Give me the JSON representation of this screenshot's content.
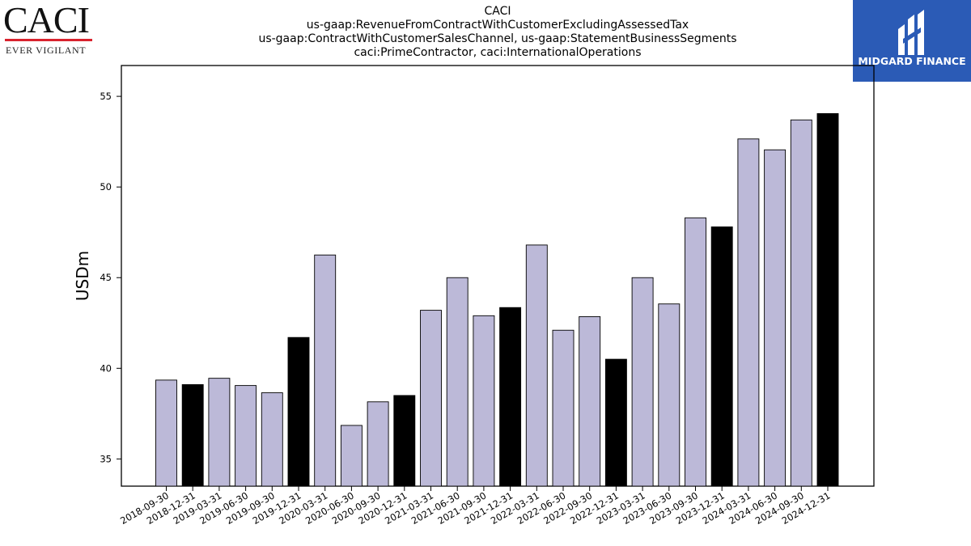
{
  "logo_left": {
    "brand": "CACI",
    "tagline": "EVER VIGILANT",
    "rule_color": "#d9232e"
  },
  "logo_right": {
    "name": "MIDGARD FINANCE",
    "background": "#2b5bb6"
  },
  "chart_data": {
    "type": "bar",
    "title": [
      "CACI",
      "us-gaap:RevenueFromContractWithCustomerExcludingAssessedTax",
      "us-gaap:ContractWithCustomerSalesChannel, us-gaap:StatementBusinessSegments",
      "caci:PrimeContractor, caci:InternationalOperations"
    ],
    "xlabel": "",
    "ylabel": "USDm",
    "ylim": [
      33.5,
      56.7
    ],
    "yticks": [
      35,
      40,
      45,
      50,
      55
    ],
    "grid": false,
    "colors": {
      "quarter": "#bcb9d8",
      "year_end": "#000000",
      "edge": "#000000"
    },
    "categories": [
      "2018-09-30",
      "2018-12-31",
      "2019-03-31",
      "2019-06-30",
      "2019-09-30",
      "2019-12-31",
      "2020-03-31",
      "2020-06-30",
      "2020-09-30",
      "2020-12-31",
      "2021-03-31",
      "2021-06-30",
      "2021-09-30",
      "2021-12-31",
      "2022-03-31",
      "2022-06-30",
      "2022-09-30",
      "2022-12-31",
      "2023-03-31",
      "2023-06-30",
      "2023-09-30",
      "2023-12-31",
      "2024-03-31",
      "2024-06-30",
      "2024-09-30",
      "2024-12-31"
    ],
    "values": [
      39.35,
      39.1,
      39.45,
      39.05,
      38.65,
      41.7,
      46.25,
      36.85,
      38.15,
      38.5,
      43.2,
      45.0,
      42.9,
      43.35,
      46.8,
      42.1,
      42.85,
      40.5,
      45.0,
      43.55,
      48.3,
      47.8,
      52.65,
      52.05,
      53.7,
      54.05
    ],
    "highlight": [
      false,
      true,
      false,
      false,
      false,
      true,
      false,
      false,
      false,
      true,
      false,
      false,
      false,
      true,
      false,
      false,
      false,
      true,
      false,
      false,
      false,
      true,
      false,
      false,
      false,
      true
    ]
  }
}
